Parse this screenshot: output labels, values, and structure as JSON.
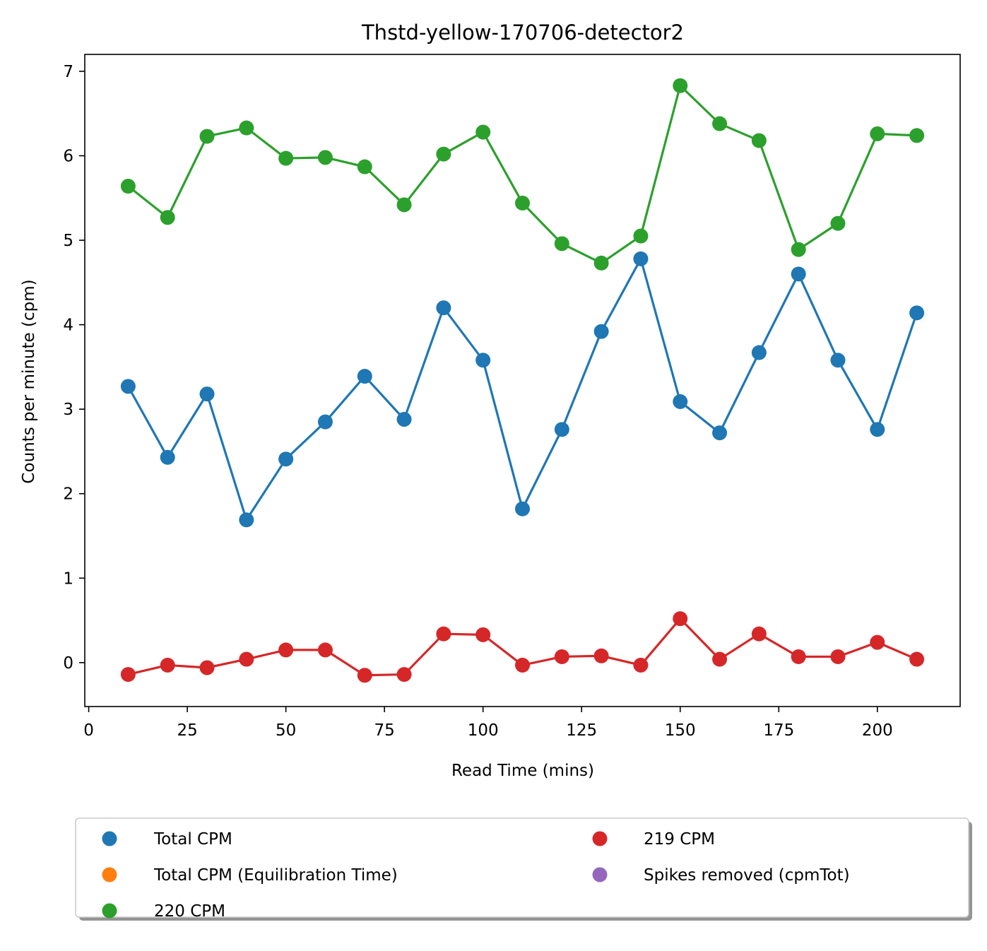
{
  "chart_data": {
    "type": "line",
    "title": "Thstd-yellow-170706-detector2",
    "xlabel": "Read Time (mins)",
    "ylabel": "Counts per minute (cpm)",
    "xlim": [
      -1,
      221
    ],
    "ylim": [
      -0.52,
      7.2
    ],
    "xticks": [
      0,
      25,
      50,
      75,
      100,
      125,
      150,
      175,
      200
    ],
    "yticks": [
      0,
      1,
      2,
      3,
      4,
      5,
      6,
      7
    ],
    "x": [
      10,
      20,
      30,
      40,
      50,
      60,
      70,
      80,
      90,
      100,
      110,
      120,
      130,
      140,
      150,
      160,
      170,
      180,
      190,
      200,
      210
    ],
    "series": [
      {
        "name": "Total CPM",
        "color": "#1f77b4",
        "values": [
          3.27,
          2.43,
          3.18,
          1.69,
          2.41,
          2.85,
          3.39,
          2.88,
          4.2,
          3.58,
          1.82,
          2.76,
          3.92,
          4.78,
          3.09,
          2.72,
          3.67,
          4.6,
          3.58,
          2.76,
          4.14
        ]
      },
      {
        "name": "220 CPM",
        "color": "#2ca02c",
        "values": [
          5.64,
          5.27,
          6.23,
          6.33,
          5.97,
          5.98,
          5.87,
          5.42,
          6.02,
          6.28,
          5.44,
          4.96,
          4.73,
          5.05,
          6.83,
          6.38,
          6.18,
          4.89,
          5.2,
          6.26,
          6.24
        ]
      },
      {
        "name": "219 CPM",
        "color": "#d62728",
        "values": [
          -0.14,
          -0.03,
          -0.06,
          0.04,
          0.15,
          0.15,
          -0.15,
          -0.14,
          0.34,
          0.33,
          -0.03,
          0.07,
          0.08,
          -0.03,
          0.52,
          0.04,
          0.34,
          0.07,
          0.07,
          0.24,
          0.04
        ]
      }
    ],
    "legend": {
      "placement": "bottom-center",
      "entries": [
        {
          "label": "Total CPM",
          "color": "#1f77b4"
        },
        {
          "label": "Total CPM (Equilibration Time)",
          "color": "#ff7f0e"
        },
        {
          "label": "220 CPM",
          "color": "#2ca02c"
        },
        {
          "label": "219 CPM",
          "color": "#d62728"
        },
        {
          "label": "Spikes removed (cpmTot)",
          "color": "#9467bd"
        }
      ]
    },
    "grid": false
  }
}
